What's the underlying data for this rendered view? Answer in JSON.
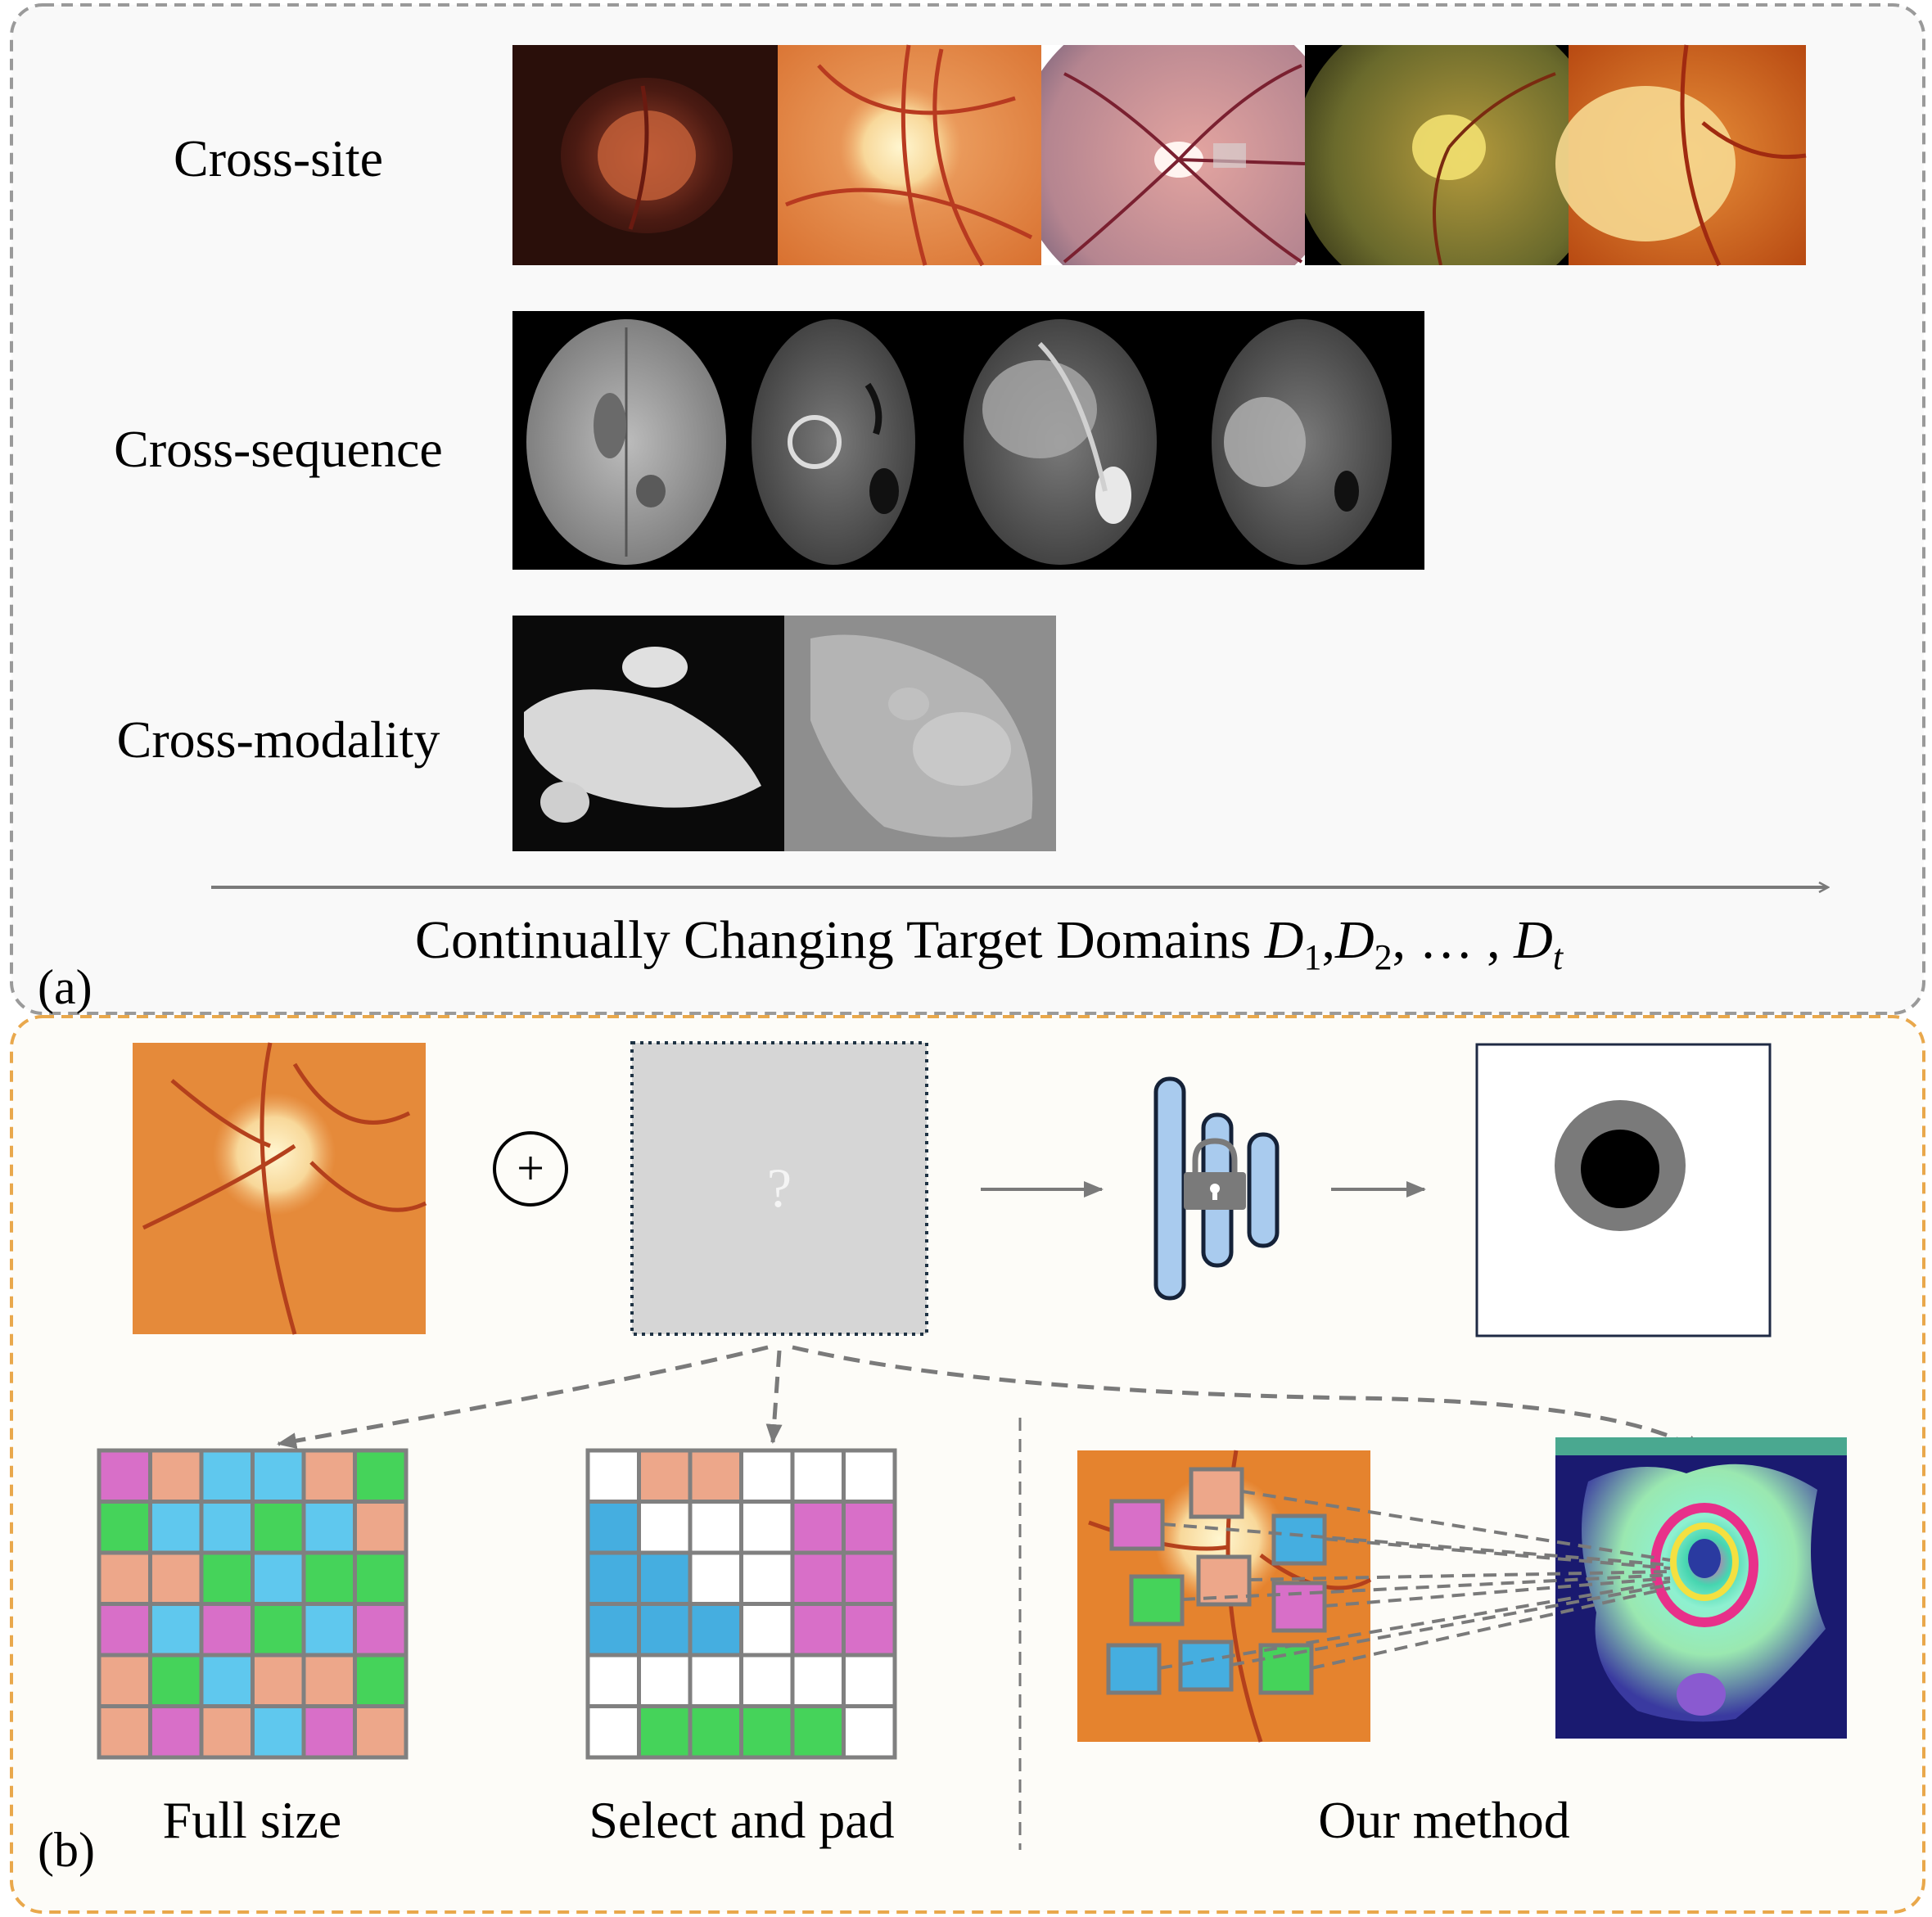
{
  "panel_a": {
    "tag": "(a)",
    "rows": [
      {
        "label": "Cross-site"
      },
      {
        "label": "Cross-sequence"
      },
      {
        "label": "Cross-modality"
      }
    ],
    "axis_caption": "Continually Changing Target Domains ",
    "domain_symbol": "D",
    "domain_sub_1": "1",
    "domain_sub_2": "2",
    "domain_sub_t": "t",
    "domain_sep": ",",
    "domain_ellipsis": ", … , "
  },
  "panel_b": {
    "tag": "(b)",
    "plus_symbol": "+",
    "prompt_symbol": "?",
    "captions": {
      "full_size": "Full size",
      "select_pad": "Select and pad",
      "our_method": "Our method"
    },
    "full_size_grid": [
      [
        "m",
        "o",
        "c",
        "c",
        "o",
        "g"
      ],
      [
        "g",
        "c",
        "c",
        "g",
        "c",
        "o"
      ],
      [
        "o",
        "o",
        "g",
        "c",
        "g",
        "g"
      ],
      [
        "m",
        "c",
        "m",
        "g",
        "c",
        "m"
      ],
      [
        "o",
        "g",
        "c",
        "o",
        "o",
        "g"
      ],
      [
        "o",
        "m",
        "o",
        "c",
        "m",
        "o"
      ]
    ],
    "select_pad_grid": [
      [
        "w",
        "o",
        "o",
        "w",
        "w",
        "w"
      ],
      [
        "b",
        "w",
        "w",
        "w",
        "m",
        "m"
      ],
      [
        "b",
        "b",
        "w",
        "w",
        "m",
        "m"
      ],
      [
        "b",
        "b",
        "b",
        "w",
        "m",
        "m"
      ],
      [
        "w",
        "w",
        "w",
        "w",
        "w",
        "w"
      ],
      [
        "w",
        "g",
        "g",
        "g",
        "g",
        "w"
      ]
    ]
  },
  "colors": {
    "m": "#d86fc8",
    "o": "#eda78a",
    "c": "#5fc8ee",
    "g": "#45d35a",
    "b": "#45aee0",
    "w": "#ffffff",
    "grid_line": "#808080",
    "panel_a_border": "#999999",
    "panel_b_border": "#e9a84c",
    "encoder_fill": "#a9cbee",
    "encoder_stroke": "#152238"
  }
}
